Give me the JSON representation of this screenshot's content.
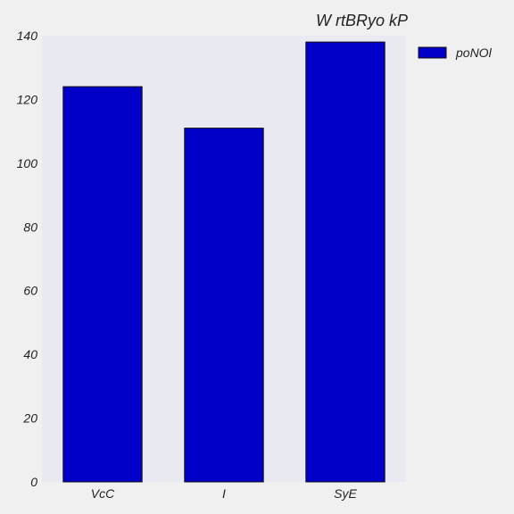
{
  "chart_data": {
    "type": "bar",
    "title": "W rtBRyo kP",
    "xlabel": "",
    "ylabel": "",
    "categories": [
      "VcC",
      "I",
      "SyE"
    ],
    "series": [
      {
        "name": "poNOl",
        "values": [
          124,
          111,
          138
        ]
      }
    ],
    "ylim": [
      0,
      140
    ],
    "yticks": [
      0,
      20,
      40,
      60,
      80,
      100,
      120,
      140
    ],
    "grid": false,
    "legend_position": "top-right",
    "colors": {
      "bar": "#0000c8",
      "plot_background": "#e9e9f2",
      "figure_background": "#f0f0f0"
    }
  }
}
